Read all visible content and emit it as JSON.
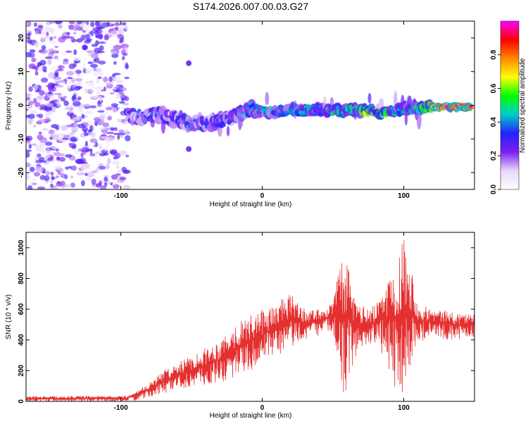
{
  "chart_data": [
    {
      "type": "heatmap",
      "title": "S174.2026.007.00.03.G27",
      "xlabel": "Height of straight line (km)",
      "ylabel": "Frequency (Hz)",
      "xlim": [
        -167,
        150
      ],
      "ylim": [
        -25,
        25
      ],
      "xticks": [
        -100,
        0,
        100
      ],
      "yticks": [
        -20,
        -10,
        0,
        10,
        20
      ],
      "xtick_labels": [
        "-100",
        "0",
        "100"
      ],
      "ytick_labels": [
        "-20",
        "-10",
        "0",
        "10",
        "20"
      ],
      "noise_region_x": [
        -167,
        -95
      ],
      "ridge_points": [
        {
          "x": -95,
          "y": -3.0,
          "amp": 0.35
        },
        {
          "x": -85,
          "y": -3.5,
          "amp": 0.35
        },
        {
          "x": -75,
          "y": -2.5,
          "amp": 0.35
        },
        {
          "x": -65,
          "y": -4.0,
          "amp": 0.3
        },
        {
          "x": -55,
          "y": -5.0,
          "amp": 0.35
        },
        {
          "x": -45,
          "y": -5.5,
          "amp": 0.35
        },
        {
          "x": -35,
          "y": -5.0,
          "amp": 0.35
        },
        {
          "x": -25,
          "y": -4.0,
          "amp": 0.35
        },
        {
          "x": -15,
          "y": -2.5,
          "amp": 0.4
        },
        {
          "x": -8,
          "y": -1.0,
          "amp": 0.45
        },
        {
          "x": 0,
          "y": -2.0,
          "amp": 0.45
        },
        {
          "x": 10,
          "y": -2.0,
          "amp": 0.45
        },
        {
          "x": 20,
          "y": -1.5,
          "amp": 0.45
        },
        {
          "x": 30,
          "y": -1.5,
          "amp": 0.5
        },
        {
          "x": 40,
          "y": -1.5,
          "amp": 0.45
        },
        {
          "x": 50,
          "y": -1.5,
          "amp": 0.45
        },
        {
          "x": 60,
          "y": -1.5,
          "amp": 0.5
        },
        {
          "x": 70,
          "y": -1.5,
          "amp": 0.5
        },
        {
          "x": 75,
          "y": -1.5,
          "amp": 0.85
        },
        {
          "x": 85,
          "y": -2.5,
          "amp": 0.65
        },
        {
          "x": 95,
          "y": -1.5,
          "amp": 0.45
        },
        {
          "x": 105,
          "y": -1.0,
          "amp": 0.5
        },
        {
          "x": 115,
          "y": -0.5,
          "amp": 0.6
        },
        {
          "x": 125,
          "y": -0.5,
          "amp": 0.97
        },
        {
          "x": 135,
          "y": -0.5,
          "amp": 0.97
        },
        {
          "x": 148,
          "y": -0.5,
          "amp": 0.97
        }
      ],
      "isolated_blobs": [
        {
          "x": -52,
          "y": 12.5,
          "amp": 0.15
        },
        {
          "x": -52,
          "y": -13.0,
          "amp": 0.15
        }
      ],
      "colorbar": {
        "label": "Normalized spectral amplitude",
        "range": [
          0,
          1
        ],
        "ticks": [
          0.0,
          0.2,
          0.4,
          0.6,
          0.8
        ],
        "tick_labels": [
          "0.0",
          "0.2",
          "0.4",
          "0.6",
          "0.8"
        ],
        "colors": [
          "#ffffff",
          "#e6d6fb",
          "#7c1ff2",
          "#2222ff",
          "#00cccc",
          "#00ff00",
          "#ffff00",
          "#ff8800",
          "#ff0000",
          "#ff00ff"
        ]
      }
    },
    {
      "type": "line",
      "xlabel": "Height of straight line (km)",
      "ylabel": "SNR (10 * v/v)",
      "xlim": [
        -167,
        150
      ],
      "ylim": [
        0,
        1100
      ],
      "xticks": [
        -100,
        0,
        100
      ],
      "yticks": [
        0,
        200,
        400,
        600,
        800,
        1000
      ],
      "xtick_labels": [
        "-100",
        "0",
        "100"
      ],
      "ytick_labels": [
        "0",
        "200",
        "400",
        "600",
        "800",
        "1000"
      ],
      "color": "#e53030",
      "envelope": {
        "x": [
          -167,
          -100,
          -95,
          -90,
          -80,
          -70,
          -60,
          -50,
          -40,
          -30,
          -20,
          -10,
          0,
          10,
          20,
          25,
          30,
          40,
          50,
          55,
          58,
          60,
          65,
          70,
          80,
          90,
          95,
          100,
          105,
          110,
          120,
          130,
          140,
          150
        ],
        "min": [
          0,
          0,
          0,
          5,
          20,
          50,
          80,
          90,
          100,
          120,
          150,
          200,
          220,
          280,
          330,
          380,
          400,
          430,
          440,
          200,
          20,
          100,
          250,
          350,
          380,
          200,
          50,
          40,
          220,
          380,
          420,
          400,
          400,
          420
        ],
        "max": [
          35,
          35,
          40,
          60,
          120,
          200,
          250,
          300,
          350,
          400,
          500,
          550,
          600,
          650,
          700,
          660,
          600,
          600,
          650,
          900,
          960,
          900,
          700,
          620,
          620,
          850,
          960,
          1100,
          900,
          650,
          600,
          590,
          580,
          570
        ]
      }
    }
  ]
}
